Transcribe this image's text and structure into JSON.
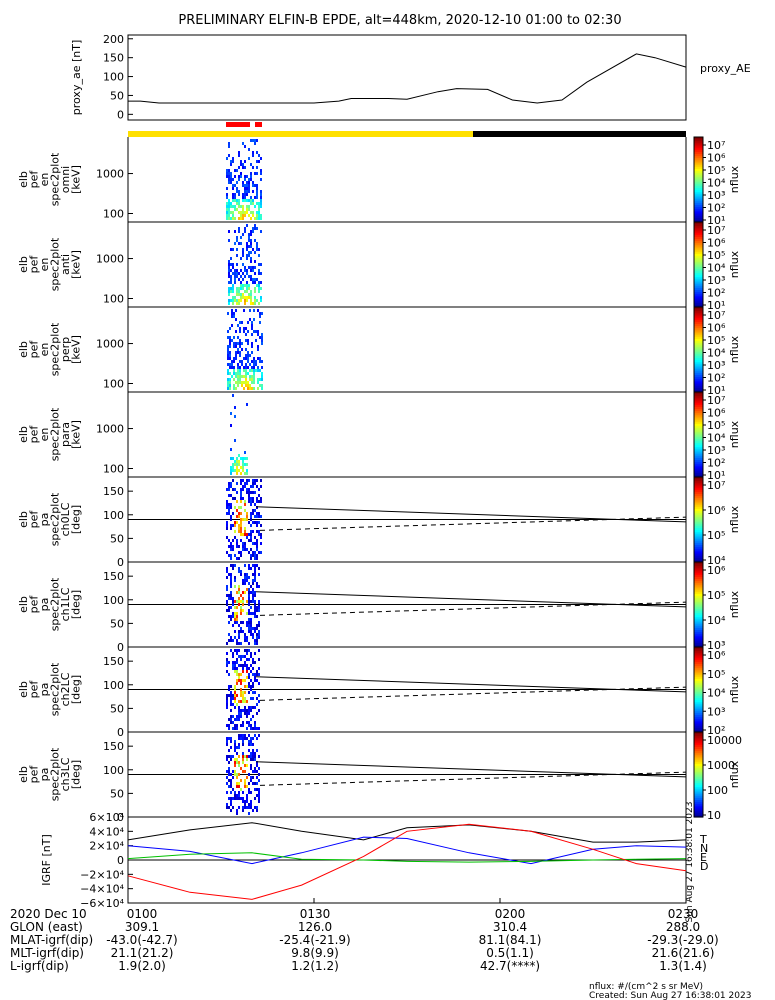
{
  "title": "PRELIMINARY ELFIN-B EPDE, alt=448km, 2020-12-10 01:00 to 02:30",
  "colors": {
    "bar_yellow": "#ffe000",
    "bar_black": "#000000",
    "bar_red": "#ff0000",
    "igrf_T": "#000000",
    "igrf_N": "#0000ff",
    "igrf_E": "#00c000",
    "igrf_D": "#ff0000"
  },
  "chart_data": [
    {
      "type": "line",
      "panel": "proxy_ae",
      "ylabel": "proxy_ae [nT]",
      "legend": "proxy_AE",
      "yticks": [
        "200",
        "150",
        "100",
        "50",
        "0"
      ],
      "ylim": [
        -15,
        210
      ],
      "x_minutes": [
        0,
        2,
        5,
        16,
        22,
        30,
        34,
        36,
        40,
        42,
        45,
        50,
        53,
        58,
        62,
        66,
        70,
        74,
        82,
        85,
        90
      ],
      "values": [
        35,
        35,
        30,
        30,
        30,
        30,
        35,
        42,
        42,
        42,
        40,
        60,
        68,
        66,
        38,
        30,
        38,
        85,
        160,
        150,
        125
      ]
    },
    {
      "type": "heatmap",
      "panel": "omni",
      "ylabel": [
        "elb",
        "pef",
        "en",
        "spec2plot",
        "omni",
        "[keV]"
      ],
      "yticks": [
        "1000",
        "100"
      ],
      "colorbar_ticks": [
        "10⁷",
        "10⁶",
        "10⁵",
        "10⁴",
        "10³",
        "10²",
        "10¹"
      ],
      "colorbar_label": "nflux"
    },
    {
      "type": "heatmap",
      "panel": "anti",
      "ylabel": [
        "elb",
        "pef",
        "en",
        "spec2plot",
        "anti",
        "[keV]"
      ],
      "yticks": [
        "1000",
        "100"
      ],
      "colorbar_ticks": [
        "10⁷",
        "10⁶",
        "10⁵",
        "10⁴",
        "10³",
        "10²",
        "10¹"
      ],
      "colorbar_label": "nflux"
    },
    {
      "type": "heatmap",
      "panel": "perp",
      "ylabel": [
        "elb",
        "pef",
        "en",
        "spec2plot",
        "perp",
        "[keV]"
      ],
      "yticks": [
        "1000",
        "100"
      ],
      "colorbar_ticks": [
        "10⁷",
        "10⁶",
        "10⁵",
        "10⁴",
        "10³",
        "10²",
        "10¹"
      ],
      "colorbar_label": "nflux"
    },
    {
      "type": "heatmap",
      "panel": "para",
      "ylabel": [
        "elb",
        "pef",
        "en",
        "spec2plot",
        "para",
        "[keV]"
      ],
      "yticks": [
        "1000",
        "100"
      ],
      "colorbar_ticks": [
        "10⁷",
        "10⁶",
        "10⁵",
        "10⁴",
        "10³",
        "10²",
        "10¹"
      ],
      "colorbar_label": "nflux"
    },
    {
      "type": "heatmap",
      "panel": "ch0LC",
      "ylabel": [
        "elb",
        "pef",
        "pa",
        "spec2plot",
        "ch0LC",
        "[deg]"
      ],
      "yticks": [
        "150",
        "100",
        "50",
        "0"
      ],
      "colorbar_ticks": [
        "10⁷",
        "10⁶",
        "10⁵",
        "10⁴"
      ],
      "colorbar_label": "nflux"
    },
    {
      "type": "heatmap",
      "panel": "ch1LC",
      "ylabel": [
        "elb",
        "pef",
        "pa",
        "spec2plot",
        "ch1LC",
        "[deg]"
      ],
      "yticks": [
        "150",
        "100",
        "50",
        "0"
      ],
      "colorbar_ticks": [
        "10⁶",
        "10⁵",
        "10⁴",
        "10³"
      ],
      "colorbar_label": "nflux"
    },
    {
      "type": "heatmap",
      "panel": "ch2LC",
      "ylabel": [
        "elb",
        "pef",
        "pa",
        "spec2plot",
        "ch2LC",
        "[deg]"
      ],
      "yticks": [
        "150",
        "100",
        "50",
        "0"
      ],
      "colorbar_ticks": [
        "10⁶",
        "10⁵",
        "10⁴",
        "10³",
        "10²"
      ],
      "colorbar_label": "nflux"
    },
    {
      "type": "heatmap",
      "panel": "ch3LC",
      "ylabel": [
        "elb",
        "pef",
        "pa",
        "spec2plot",
        "ch3LC",
        "[deg]"
      ],
      "yticks": [
        "150",
        "100",
        "50",
        "0"
      ],
      "colorbar_ticks": [
        "10000",
        "1000",
        "100",
        "10"
      ],
      "colorbar_label": "nflux"
    },
    {
      "type": "line",
      "panel": "igrf",
      "ylabel": "IGRF [nT]",
      "yticks": [
        "6×10⁴",
        "4×10⁴",
        "2×10⁴",
        "0",
        "−2×10⁴",
        "−4×10⁴",
        "−6×10⁴"
      ],
      "ylim": [
        -60000,
        60000
      ],
      "legend": [
        "T",
        "N",
        "E",
        "D"
      ],
      "stamp": "Sun Aug 27 16:38:01 2023",
      "x_minutes": [
        0,
        10,
        20,
        28,
        38,
        45,
        55,
        65,
        75,
        82,
        90
      ],
      "series": [
        {
          "name": "T",
          "values": [
            28000,
            42000,
            52000,
            40000,
            28000,
            45000,
            49000,
            40000,
            25000,
            25000,
            28000
          ]
        },
        {
          "name": "N",
          "values": [
            20000,
            12000,
            -5000,
            10000,
            32000,
            30000,
            10000,
            -5000,
            15000,
            20000,
            18000
          ]
        },
        {
          "name": "E",
          "values": [
            2000,
            8000,
            10000,
            1000,
            0,
            -2000,
            -3000,
            -2000,
            0,
            1000,
            2000
          ]
        },
        {
          "name": "D",
          "values": [
            -22000,
            -45000,
            -55000,
            -35000,
            5000,
            40000,
            50000,
            40000,
            15000,
            -5000,
            -15000
          ]
        }
      ]
    }
  ],
  "xticks": [
    "0100",
    "0130",
    "0200",
    "0230"
  ],
  "ephemeris": {
    "labels": [
      "2020 Dec 10",
      "GLON (east)",
      "MLAT-igrf(dip)",
      "MLT-igrf(dip)",
      "L-igrf(dip)"
    ],
    "rows": [
      [
        "309.1",
        "126.0",
        "310.4",
        "288.0"
      ],
      [
        "-43.0(-42.7)",
        "-25.4(-21.9)",
        "81.1(84.1)",
        "-29.3(-29.0)"
      ],
      [
        "21.1(21.2)",
        "9.8(9.9)",
        "0.5(1.1)",
        "21.6(21.6)"
      ],
      [
        "1.9(2.0)",
        "1.2(1.2)",
        "42.7(****)",
        "1.3(1.4)"
      ]
    ]
  },
  "footer": {
    "units": "nflux: #/(cm^2 s sr MeV)",
    "created": "Created: Sun Aug 27 16:38:01 2023"
  }
}
